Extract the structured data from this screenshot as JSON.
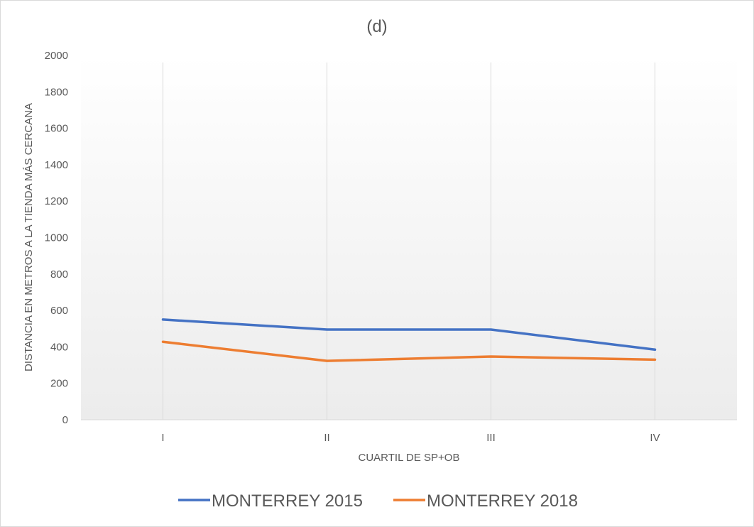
{
  "chart_data": {
    "type": "line",
    "title": "(d)",
    "xlabel": "CUARTIL DE SP+OB",
    "ylabel": "DISTANCIA EN METROS A LA TIENDA MÁS CERCANA",
    "categories": [
      "I",
      "II",
      "III",
      "IV"
    ],
    "ylim": [
      0,
      2000
    ],
    "yticks": [
      0,
      200,
      400,
      600,
      800,
      1000,
      1200,
      1400,
      1600,
      1800,
      2000
    ],
    "ytick_labels": [
      "0",
      "200",
      "400",
      "600",
      "800",
      "1000",
      "1200",
      "1400",
      "1600",
      "1800",
      "2000"
    ],
    "grid": "vertical lines at categories",
    "legend_position": "bottom",
    "series": [
      {
        "name": "MONTERREY 2015",
        "color": "#4472c4",
        "values": [
          550,
          495,
          495,
          385
        ]
      },
      {
        "name": "MONTERREY 2018",
        "color": "#ed7d31",
        "values": [
          428,
          323,
          347,
          330
        ]
      }
    ]
  }
}
